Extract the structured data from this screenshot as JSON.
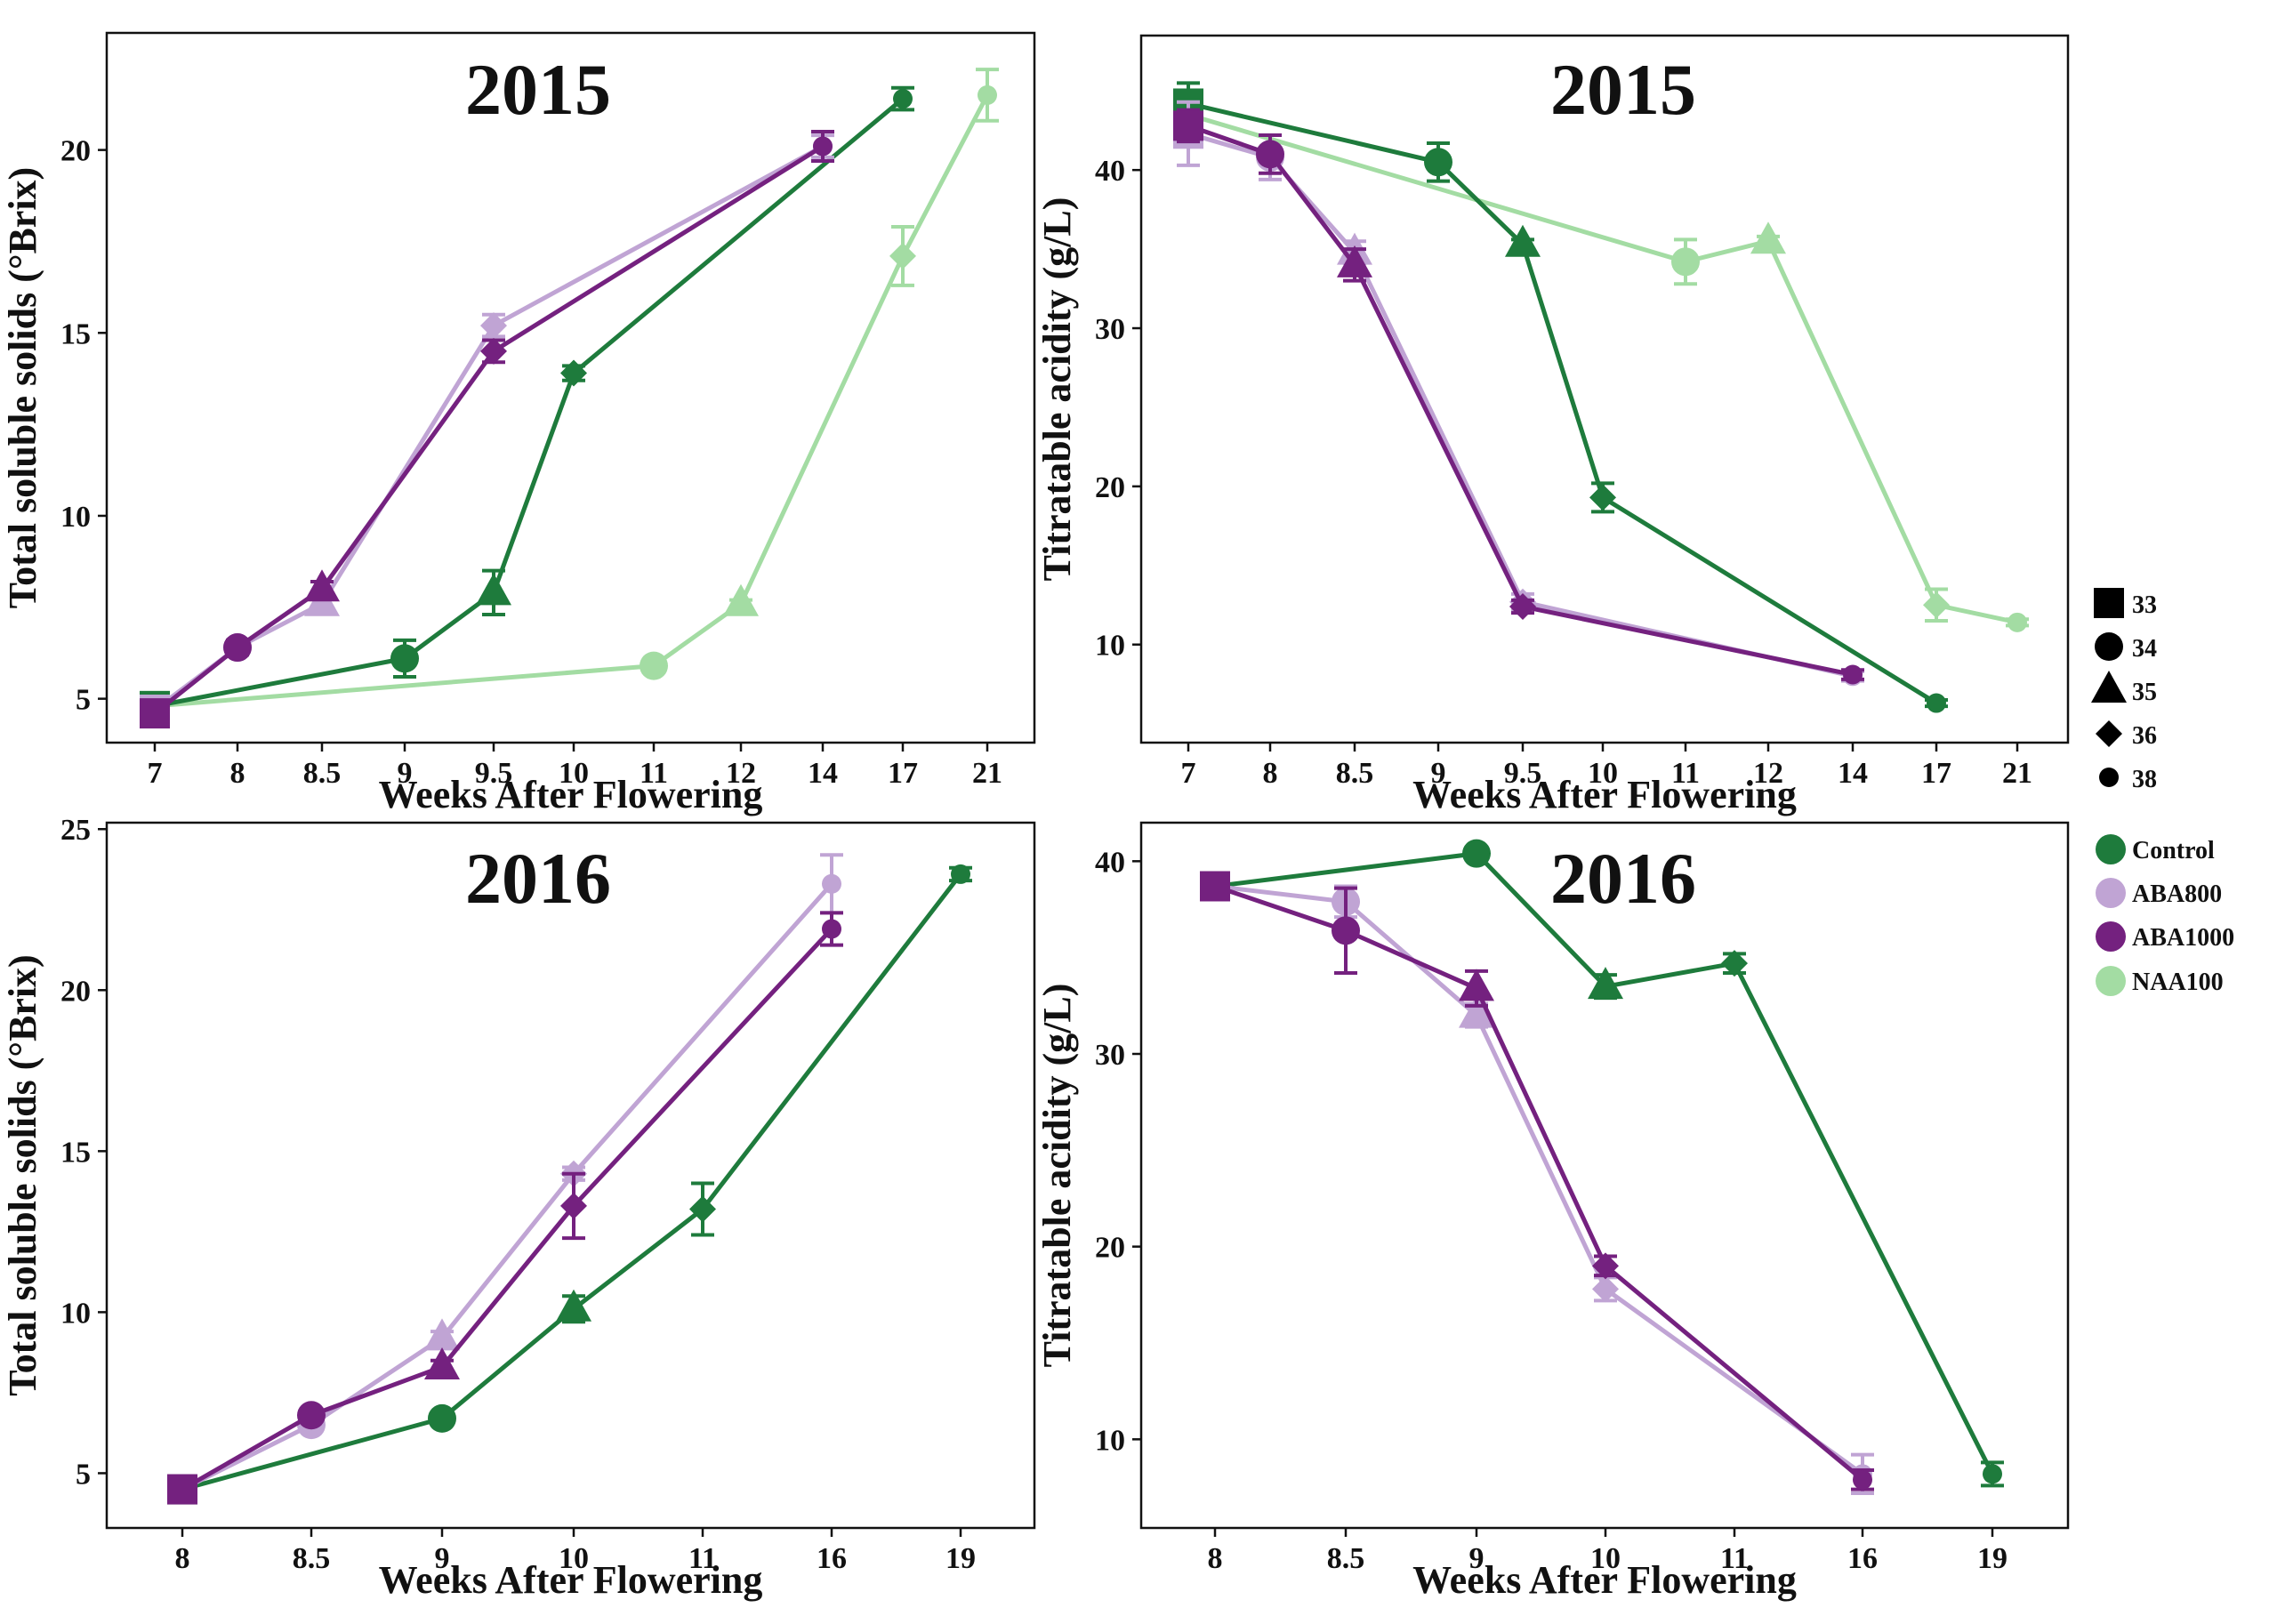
{
  "colors": {
    "Control": "#1e7b3c",
    "ABA800": "#c0a4d4",
    "ABA1000": "#74217f",
    "NAA100": "#a3dca3"
  },
  "legend": {
    "shapes": [
      {
        "label": "33",
        "shape": "square"
      },
      {
        "label": "34",
        "shape": "circle"
      },
      {
        "label": "35",
        "shape": "triangle"
      },
      {
        "label": "36",
        "shape": "diamond"
      },
      {
        "label": "38",
        "shape": "small-circle"
      }
    ],
    "treatments": [
      "Control",
      "ABA800",
      "ABA1000",
      "NAA100"
    ]
  },
  "chart_data": [
    {
      "type": "line",
      "title": "2015",
      "xlabel": "Weeks After Flowering",
      "ylabel": "Total soluble solids (°Brix)",
      "categories": [
        "7",
        "8",
        "8.5",
        "9",
        "9.5",
        "10",
        "11",
        "12",
        "14",
        "17",
        "21"
      ],
      "ylim": [
        3.8,
        23.2
      ],
      "yticks": [
        5,
        10,
        15,
        20
      ],
      "series": [
        {
          "name": "Control",
          "points": [
            {
              "x": "7",
              "y": 4.8,
              "err": 0.3,
              "shape": "square"
            },
            {
              "x": "9",
              "y": 6.1,
              "err": 0.5,
              "shape": "circle"
            },
            {
              "x": "9.5",
              "y": 7.9,
              "err": 0.6,
              "shape": "triangle"
            },
            {
              "x": "10",
              "y": 13.9,
              "err": 0.2,
              "shape": "diamond"
            },
            {
              "x": "17",
              "y": 21.4,
              "err": 0.3,
              "shape": "small-circle"
            }
          ]
        },
        {
          "name": "ABA800",
          "points": [
            {
              "x": "7",
              "y": 4.7,
              "err": 0.2,
              "shape": "square"
            },
            {
              "x": "8",
              "y": 6.4,
              "err": 0.1,
              "shape": "circle"
            },
            {
              "x": "8.5",
              "y": 7.6,
              "err": 0.2,
              "shape": "triangle"
            },
            {
              "x": "9.5",
              "y": 15.2,
              "err": 0.3,
              "shape": "diamond"
            },
            {
              "x": "14",
              "y": 20.1,
              "err": 0.3,
              "shape": "small-circle"
            }
          ]
        },
        {
          "name": "ABA1000",
          "points": [
            {
              "x": "7",
              "y": 4.6,
              "err": 0.3,
              "shape": "square"
            },
            {
              "x": "8",
              "y": 6.4,
              "err": 0.2,
              "shape": "circle"
            },
            {
              "x": "8.5",
              "y": 8.0,
              "err": 0.2,
              "shape": "triangle"
            },
            {
              "x": "9.5",
              "y": 14.5,
              "err": 0.3,
              "shape": "diamond"
            },
            {
              "x": "14",
              "y": 20.1,
              "err": 0.4,
              "shape": "small-circle"
            }
          ]
        },
        {
          "name": "NAA100",
          "points": [
            {
              "x": "7",
              "y": 4.8,
              "err": 0.3,
              "shape": "square"
            },
            {
              "x": "11",
              "y": 5.9,
              "err": 0.1,
              "shape": "circle"
            },
            {
              "x": "12",
              "y": 7.6,
              "err": 0.1,
              "shape": "triangle"
            },
            {
              "x": "17",
              "y": 17.1,
              "err": 0.8,
              "shape": "diamond"
            },
            {
              "x": "21",
              "y": 21.5,
              "err": 0.7,
              "shape": "small-circle"
            }
          ]
        }
      ]
    },
    {
      "type": "line",
      "title": "2015",
      "xlabel": "Weeks After Flowering",
      "ylabel": "Titratable acidity (g/L)",
      "categories": [
        "7",
        "8",
        "8.5",
        "9",
        "9.5",
        "10",
        "11",
        "12",
        "14",
        "17",
        "21"
      ],
      "ylim": [
        3.8,
        48.5
      ],
      "yticks": [
        10,
        20,
        30,
        40
      ],
      "series": [
        {
          "name": "Control",
          "points": [
            {
              "x": "7",
              "y": 44.2,
              "err": 1.3,
              "shape": "square"
            },
            {
              "x": "9",
              "y": 40.5,
              "err": 1.2,
              "shape": "circle"
            },
            {
              "x": "9.5",
              "y": 35.3,
              "err": 0.3,
              "shape": "triangle"
            },
            {
              "x": "10",
              "y": 19.3,
              "err": 0.9,
              "shape": "diamond"
            },
            {
              "x": "17",
              "y": 6.3,
              "err": 0.2,
              "shape": "small-circle"
            }
          ]
        },
        {
          "name": "ABA800",
          "points": [
            {
              "x": "7",
              "y": 42.3,
              "err": 2.0,
              "shape": "square"
            },
            {
              "x": "8",
              "y": 40.8,
              "err": 1.4,
              "shape": "circle"
            },
            {
              "x": "8.5",
              "y": 34.8,
              "err": 0.7,
              "shape": "triangle"
            },
            {
              "x": "9.5",
              "y": 12.7,
              "err": 0.5,
              "shape": "diamond"
            },
            {
              "x": "14",
              "y": 8.0,
              "err": 0.3,
              "shape": "small-circle"
            }
          ]
        },
        {
          "name": "ABA1000",
          "points": [
            {
              "x": "7",
              "y": 42.8,
              "err": 1.0,
              "shape": "square"
            },
            {
              "x": "8",
              "y": 41.0,
              "err": 1.2,
              "shape": "circle"
            },
            {
              "x": "8.5",
              "y": 34.0,
              "err": 1.0,
              "shape": "triangle"
            },
            {
              "x": "9.5",
              "y": 12.4,
              "err": 0.4,
              "shape": "diamond"
            },
            {
              "x": "14",
              "y": 8.1,
              "err": 0.3,
              "shape": "small-circle"
            }
          ]
        },
        {
          "name": "NAA100",
          "points": [
            {
              "x": "7",
              "y": 43.5,
              "err": 1.0,
              "shape": "square"
            },
            {
              "x": "11",
              "y": 34.2,
              "err": 1.4,
              "shape": "circle"
            },
            {
              "x": "12",
              "y": 35.5,
              "err": 0.3,
              "shape": "triangle"
            },
            {
              "x": "17",
              "y": 12.5,
              "err": 1.0,
              "shape": "diamond"
            },
            {
              "x": "21",
              "y": 11.4,
              "err": 0.2,
              "shape": "small-circle"
            }
          ]
        }
      ]
    },
    {
      "type": "line",
      "title": "2016",
      "xlabel": "Weeks After Flowering",
      "ylabel": "Total soluble solids (°Brix)",
      "categories": [
        "8",
        "8.5",
        "9",
        "10",
        "11",
        "16",
        "19"
      ],
      "ylim": [
        3.3,
        25.2
      ],
      "yticks": [
        5,
        10,
        15,
        20,
        25
      ],
      "series": [
        {
          "name": "Control",
          "points": [
            {
              "x": "8",
              "y": 4.5,
              "err": 0.1,
              "shape": "square"
            },
            {
              "x": "9",
              "y": 6.7,
              "err": 0.1,
              "shape": "circle"
            },
            {
              "x": "10",
              "y": 10.1,
              "err": 0.4,
              "shape": "triangle"
            },
            {
              "x": "11",
              "y": 13.2,
              "err": 0.8,
              "shape": "diamond"
            },
            {
              "x": "19",
              "y": 23.6,
              "err": 0.2,
              "shape": "small-circle"
            }
          ]
        },
        {
          "name": "ABA800",
          "points": [
            {
              "x": "8",
              "y": 4.5,
              "err": 0.1,
              "shape": "square"
            },
            {
              "x": "8.5",
              "y": 6.5,
              "err": 0.2,
              "shape": "circle"
            },
            {
              "x": "9",
              "y": 9.2,
              "err": 0.2,
              "shape": "triangle"
            },
            {
              "x": "10",
              "y": 14.3,
              "err": 0.2,
              "shape": "diamond"
            },
            {
              "x": "16",
              "y": 23.3,
              "err": 0.9,
              "shape": "small-circle"
            }
          ]
        },
        {
          "name": "ABA1000",
          "points": [
            {
              "x": "8",
              "y": 4.5,
              "err": 0.1,
              "shape": "square"
            },
            {
              "x": "8.5",
              "y": 6.8,
              "err": 0.2,
              "shape": "circle"
            },
            {
              "x": "9",
              "y": 8.3,
              "err": 0.2,
              "shape": "triangle"
            },
            {
              "x": "10",
              "y": 13.3,
              "err": 1.0,
              "shape": "diamond"
            },
            {
              "x": "16",
              "y": 21.9,
              "err": 0.5,
              "shape": "small-circle"
            }
          ]
        }
      ]
    },
    {
      "type": "line",
      "title": "2016",
      "xlabel": "Weeks After Flowering",
      "ylabel": "Titratable acidity (g/L)",
      "categories": [
        "8",
        "8.5",
        "9",
        "10",
        "11",
        "16",
        "19"
      ],
      "ylim": [
        5.4,
        42.0
      ],
      "yticks": [
        10,
        20,
        30,
        40
      ],
      "series": [
        {
          "name": "Control",
          "points": [
            {
              "x": "8",
              "y": 38.7,
              "err": 0.2,
              "shape": "square"
            },
            {
              "x": "9",
              "y": 40.4,
              "err": 0.2,
              "shape": "circle"
            },
            {
              "x": "10",
              "y": 33.5,
              "err": 0.6,
              "shape": "triangle"
            },
            {
              "x": "11",
              "y": 34.7,
              "err": 0.5,
              "shape": "diamond"
            },
            {
              "x": "19",
              "y": 8.2,
              "err": 0.6,
              "shape": "small-circle"
            }
          ]
        },
        {
          "name": "ABA800",
          "points": [
            {
              "x": "8",
              "y": 38.7,
              "err": 0.2,
              "shape": "square"
            },
            {
              "x": "8.5",
              "y": 37.9,
              "err": 0.8,
              "shape": "circle"
            },
            {
              "x": "9",
              "y": 32.0,
              "err": 0.6,
              "shape": "triangle"
            },
            {
              "x": "10",
              "y": 17.8,
              "err": 0.6,
              "shape": "diamond"
            },
            {
              "x": "16",
              "y": 8.2,
              "err": 1.0,
              "shape": "small-circle"
            }
          ]
        },
        {
          "name": "ABA1000",
          "points": [
            {
              "x": "8",
              "y": 38.7,
              "err": 0.2,
              "shape": "square"
            },
            {
              "x": "8.5",
              "y": 36.4,
              "err": 2.2,
              "shape": "circle"
            },
            {
              "x": "9",
              "y": 33.4,
              "err": 0.9,
              "shape": "triangle"
            },
            {
              "x": "10",
              "y": 19.0,
              "err": 0.5,
              "shape": "diamond"
            },
            {
              "x": "16",
              "y": 7.9,
              "err": 0.5,
              "shape": "small-circle"
            }
          ]
        }
      ]
    }
  ]
}
